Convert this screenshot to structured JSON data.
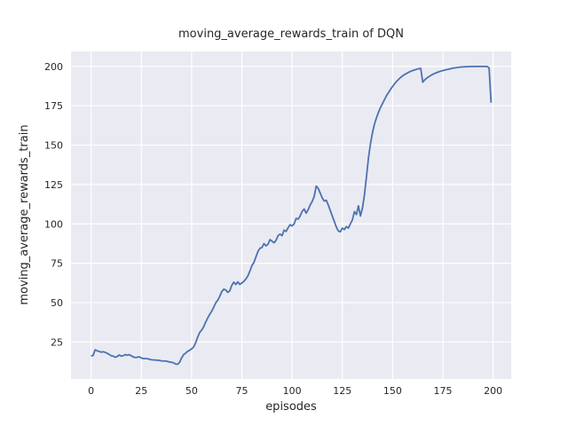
{
  "figure": {
    "title": "moving_average_rewards_train of DQN",
    "xlabel": "episodes",
    "ylabel": "moving_average_rewards_train"
  },
  "chart_data": {
    "type": "line",
    "title": "moving_average_rewards_train of DQN",
    "xlabel": "episodes",
    "ylabel": "moving_average_rewards_train",
    "legend": "none",
    "grid": true,
    "x_start": 0,
    "x_step": 1,
    "xticks": [
      0,
      25,
      50,
      75,
      100,
      125,
      150,
      175,
      200
    ],
    "yticks": [
      25,
      50,
      75,
      100,
      125,
      150,
      175,
      200
    ],
    "xlim": [
      -10,
      209
    ],
    "ylim": [
      1.5,
      209.5
    ],
    "line_color": "#4c72b0",
    "background_color": "#eaeaf2",
    "grid_color": "#ffffff",
    "text_color": "#262626",
    "values": [
      16.0,
      16.5,
      20.0,
      19.4,
      19.0,
      18.5,
      18.8,
      18.4,
      17.8,
      17.1,
      16.2,
      16.0,
      15.3,
      15.8,
      16.7,
      16.0,
      16.3,
      17.0,
      16.6,
      16.9,
      16.2,
      15.5,
      15.1,
      15.3,
      15.6,
      14.8,
      14.5,
      14.4,
      14.4,
      14.0,
      13.7,
      13.6,
      13.5,
      13.4,
      13.3,
      13.0,
      12.9,
      12.9,
      12.6,
      12.3,
      12.1,
      11.8,
      11.0,
      10.8,
      12.0,
      14.8,
      16.9,
      17.9,
      19.0,
      19.7,
      20.6,
      21.8,
      24.5,
      28.0,
      31.0,
      32.5,
      34.6,
      37.6,
      40.2,
      42.5,
      44.5,
      47.0,
      49.8,
      51.5,
      54.0,
      57.0,
      58.5,
      58.0,
      56.5,
      57.5,
      61.0,
      63.0,
      61.5,
      63.2,
      61.5,
      62.5,
      63.5,
      65.0,
      67.0,
      70.0,
      73.5,
      75.5,
      79.0,
      82.5,
      84.5,
      85.0,
      87.5,
      86.0,
      87.0,
      90.0,
      89.0,
      88.0,
      89.5,
      92.5,
      93.5,
      92.5,
      96.0,
      95.2,
      97.5,
      99.5,
      98.7,
      100.0,
      103.5,
      103.0,
      105.0,
      108.0,
      109.5,
      106.8,
      109.0,
      112.0,
      114.3,
      117.5,
      124.0,
      122.5,
      119.5,
      116.5,
      114.5,
      115.0,
      112.0,
      108.5,
      105.0,
      101.5,
      98.0,
      95.5,
      95.0,
      97.3,
      96.4,
      98.3,
      97.3,
      100.0,
      102.5,
      107.8,
      105.9,
      111.5,
      105.0,
      110.0,
      118.5,
      130.0,
      142.0,
      151.0,
      158.0,
      163.5,
      167.5,
      171.0,
      174.0,
      176.5,
      179.0,
      181.5,
      183.5,
      185.5,
      187.3,
      189.0,
      190.5,
      191.8,
      193.0,
      194.0,
      194.9,
      195.6,
      196.3,
      196.9,
      197.4,
      197.8,
      198.2,
      198.5,
      198.8,
      190.0,
      191.5,
      192.6,
      193.5,
      194.3,
      195.0,
      195.6,
      196.1,
      196.6,
      197.0,
      197.4,
      197.7,
      198.0,
      198.3,
      198.6,
      198.9,
      199.1,
      199.3,
      199.5,
      199.6,
      199.7,
      199.8,
      199.8,
      199.9,
      199.9,
      199.9,
      200.0,
      200.0,
      200.0,
      200.0,
      200.0,
      200.0,
      200.0,
      199.0,
      177.0
    ]
  }
}
